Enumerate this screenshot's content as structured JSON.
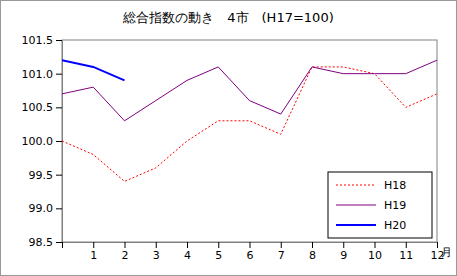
{
  "chart_data": {
    "type": "line",
    "title": "総合指数の動き　4市　(H17=100)",
    "x_label": "月",
    "categories": [
      null,
      "1",
      "2",
      "3",
      "4",
      "5",
      "6",
      "7",
      "8",
      "9",
      "10",
      "11",
      "12"
    ],
    "series": [
      {
        "name": "H18",
        "color": "#ff0000",
        "line_style": "dotted",
        "values": [
          100.0,
          99.8,
          99.4,
          99.6,
          100.0,
          100.3,
          100.3,
          100.1,
          101.1,
          101.1,
          101.0,
          100.5,
          100.7
        ]
      },
      {
        "name": "H19",
        "color": "#800080",
        "line_style": "solid",
        "values": [
          100.7,
          100.8,
          100.3,
          100.6,
          100.9,
          101.1,
          100.6,
          100.4,
          101.1,
          101.0,
          101.0,
          101.0,
          101.2
        ]
      },
      {
        "name": "H20",
        "color": "#0000ff",
        "line_style": "solid",
        "values": [
          101.2,
          101.1,
          100.9,
          null,
          null,
          null,
          null,
          null,
          null,
          null,
          null,
          null,
          null
        ]
      }
    ],
    "ylim": [
      98.5,
      101.5
    ],
    "yticks": [
      98.5,
      {
        "value": 99,
        "label": "99.0"
      },
      99.5,
      {
        "value": 100,
        "label": "100.0"
      },
      100.5,
      {
        "value": 101,
        "label": "101.0"
      },
      101.5
    ],
    "grid": false,
    "legend": "lower right"
  }
}
